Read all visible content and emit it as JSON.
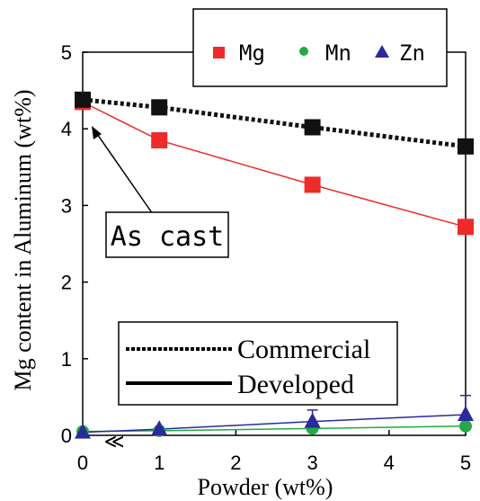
{
  "chart_data": {
    "type": "line",
    "xlabel": "Powder  (wt%)",
    "ylabel": "Mg content in Aluminum (wt%)",
    "xlim": [
      0,
      5
    ],
    "ylim": [
      0,
      5
    ],
    "x_ticks": [
      "0",
      "1",
      "2",
      "3",
      "4",
      "5"
    ],
    "y_ticks": [
      "0",
      "1",
      "2",
      "3",
      "4",
      "5"
    ],
    "grid": false,
    "legend_position": "top-right",
    "series": [
      {
        "name": "Mg",
        "marker": "square",
        "color": "#ee2b2b",
        "points": [
          {
            "x": 0,
            "y": 4.35
          },
          {
            "x": 1,
            "y": 3.85
          },
          {
            "x": 3,
            "y": 3.27
          },
          {
            "x": 5,
            "y": 2.72
          }
        ]
      },
      {
        "name": "Mn",
        "marker": "circle",
        "color": "#22aa44",
        "points": [
          {
            "x": 0,
            "y": 0.05
          },
          {
            "x": 1,
            "y": 0.06
          },
          {
            "x": 3,
            "y": 0.09
          },
          {
            "x": 5,
            "y": 0.12
          }
        ]
      },
      {
        "name": "Zn",
        "marker": "triangle",
        "color": "#2a2a9a",
        "points": [
          {
            "x": 0,
            "y": 0.04
          },
          {
            "x": 1,
            "y": 0.08
          },
          {
            "x": 3,
            "y": 0.18
          },
          {
            "x": 5,
            "y": 0.27
          }
        ],
        "error_bars": [
          0,
          0,
          0.15,
          0.25
        ]
      },
      {
        "name": "",
        "marker": "square",
        "color": "#111111",
        "line_style": "dotted",
        "points": [
          {
            "x": 0,
            "y": 4.38
          },
          {
            "x": 1,
            "y": 4.28
          },
          {
            "x": 3,
            "y": 4.02
          },
          {
            "x": 5,
            "y": 3.77
          }
        ]
      }
    ],
    "style_legend": [
      {
        "label": "Commercial",
        "line": "dotted"
      },
      {
        "label": "Developed",
        "line": "solid"
      }
    ],
    "annotations": [
      {
        "text": "As cast",
        "points_to": {
          "x": 0.1,
          "y": 4.05
        }
      }
    ],
    "axis_break_symbol": "≪",
    "colors": {
      "mg": "#ee2b2b",
      "mn": "#22aa44",
      "zn": "#2a2a9a",
      "commercial": "#111111"
    }
  }
}
